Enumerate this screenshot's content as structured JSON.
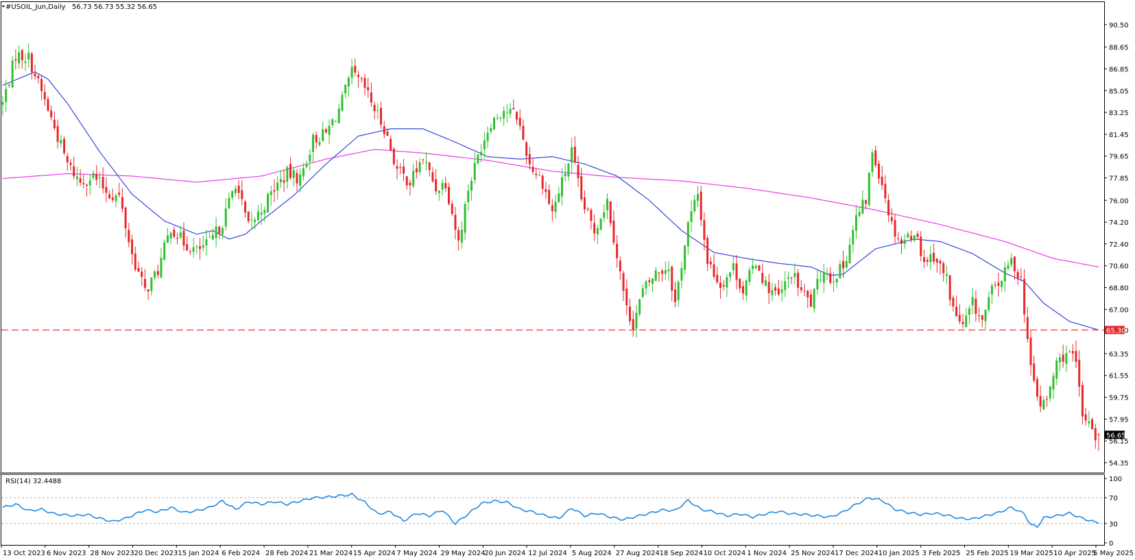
{
  "header": {
    "symbol_label": "#USOIL_Jun,Daily",
    "ohlc_text": "56.73 56.73 55.32 56.65"
  },
  "rsi_header": {
    "label": "RSI(14) 32.4488"
  },
  "colors": {
    "bull": "#2fbf2f",
    "bear": "#e8262a",
    "ma_fast": "#3344dd",
    "ma_slow": "#e83be8",
    "level_line": "#e8484a",
    "rsi_line": "#1e88e5",
    "level_tag_bg": "#e8262a",
    "price_tag_bg": "#000000"
  },
  "chart_data": [
    {
      "type": "candlestick",
      "title": "#USOIL_Jun,Daily",
      "ylim": [
        54.35,
        91.4
      ],
      "y_ticks": [
        90.5,
        88.65,
        86.85,
        85.05,
        83.25,
        81.45,
        79.65,
        77.85,
        76.0,
        74.2,
        72.4,
        70.6,
        68.8,
        67.0,
        65.3,
        63.35,
        61.55,
        59.75,
        57.95,
        56.15,
        54.35
      ],
      "x_ticks": [
        "13 Oct 2023",
        "6 Nov 2023",
        "28 Nov 2023",
        "20 Dec 2023",
        "15 Jan 2024",
        "6 Feb 2024",
        "28 Feb 2024",
        "21 Mar 2024",
        "15 Apr 2024",
        "7 May 2024",
        "29 May 2024",
        "20 Jun 2024",
        "12 Jul 2024",
        "5 Aug 2024",
        "27 Aug 2024",
        "18 Sep 2024",
        "10 Oct 2024",
        "1 Nov 2024",
        "25 Nov 2024",
        "17 Dec 2024",
        "10 Jan 2025",
        "3 Feb 2025",
        "25 Feb 2025",
        "19 Mar 2025",
        "10 Apr 2025",
        "5 May 2025"
      ],
      "last_ohlc": {
        "open": 56.73,
        "high": 56.73,
        "low": 55.32,
        "close": 56.65
      },
      "horizontal_level": 65.3,
      "level_label": "65.30",
      "price_label": "56.65",
      "close_anchors": [
        [
          0,
          84.0
        ],
        [
          4,
          88.0
        ],
        [
          8,
          87.8
        ],
        [
          14,
          83.5
        ],
        [
          20,
          79.0
        ],
        [
          24,
          77.5
        ],
        [
          28,
          78.0
        ],
        [
          33,
          76.5
        ],
        [
          36,
          76.3
        ],
        [
          40,
          71.5
        ],
        [
          44,
          68.5
        ],
        [
          48,
          70.2
        ],
        [
          52,
          73.8
        ],
        [
          56,
          72.5
        ],
        [
          60,
          71.8
        ],
        [
          64,
          72.5
        ],
        [
          68,
          74.2
        ],
        [
          72,
          77.5
        ],
        [
          76,
          73.8
        ],
        [
          80,
          75.2
        ],
        [
          84,
          77.0
        ],
        [
          88,
          78.2
        ],
        [
          92,
          77.8
        ],
        [
          96,
          81.0
        ],
        [
          100,
          81.5
        ],
        [
          104,
          83.5
        ],
        [
          108,
          86.5
        ],
        [
          112,
          85.2
        ],
        [
          116,
          83.0
        ],
        [
          118,
          82.0
        ],
        [
          122,
          78.5
        ],
        [
          126,
          77.5
        ],
        [
          130,
          79.5
        ],
        [
          134,
          77.0
        ],
        [
          137,
          77.5
        ],
        [
          141,
          72.5
        ],
        [
          144,
          77.0
        ],
        [
          148,
          80.5
        ],
        [
          151,
          82.5
        ],
        [
          155,
          83.5
        ],
        [
          159,
          83.0
        ],
        [
          163,
          79.0
        ],
        [
          167,
          77.5
        ],
        [
          170,
          75.0
        ],
        [
          173,
          77.5
        ],
        [
          176,
          80.0
        ],
        [
          179,
          76.0
        ],
        [
          183,
          73.5
        ],
        [
          187,
          76.0
        ],
        [
          190,
          71.5
        ],
        [
          193,
          67.0
        ],
        [
          195,
          65.8
        ],
        [
          198,
          68.5
        ],
        [
          202,
          70.0
        ],
        [
          206,
          70.5
        ],
        [
          208,
          67.5
        ],
        [
          212,
          74.0
        ],
        [
          215,
          76.5
        ],
        [
          218,
          71.0
        ],
        [
          222,
          69.0
        ],
        [
          226,
          70.5
        ],
        [
          229,
          68.5
        ],
        [
          233,
          71.0
        ],
        [
          236,
          69.0
        ],
        [
          240,
          68.0
        ],
        [
          244,
          70.0
        ],
        [
          247,
          68.5
        ],
        [
          250,
          67.5
        ],
        [
          254,
          70.5
        ],
        [
          256,
          69.5
        ],
        [
          260,
          70.5
        ],
        [
          264,
          74.5
        ],
        [
          267,
          76.0
        ],
        [
          269,
          80.0
        ],
        [
          272,
          77.5
        ],
        [
          275,
          74.0
        ],
        [
          278,
          72.5
        ],
        [
          282,
          73.5
        ],
        [
          285,
          71.0
        ],
        [
          288,
          71.5
        ],
        [
          292,
          69.5
        ],
        [
          294,
          67.0
        ],
        [
          297,
          65.5
        ],
        [
          300,
          67.5
        ],
        [
          303,
          66.0
        ],
        [
          306,
          68.5
        ],
        [
          309,
          69.5
        ],
        [
          312,
          71.0
        ],
        [
          315,
          69.5
        ],
        [
          318,
          62.0
        ],
        [
          321,
          59.0
        ],
        [
          323,
          59.5
        ],
        [
          326,
          62.5
        ],
        [
          329,
          63.5
        ],
        [
          332,
          62.5
        ],
        [
          334,
          58.0
        ],
        [
          336,
          58.0
        ],
        [
          338,
          56.65
        ]
      ],
      "ma_fast_anchors": [
        [
          0,
          85.5
        ],
        [
          10,
          86.6
        ],
        [
          14,
          86.0
        ],
        [
          20,
          84.0
        ],
        [
          30,
          80.0
        ],
        [
          40,
          76.5
        ],
        [
          50,
          74.3
        ],
        [
          60,
          73.2
        ],
        [
          65,
          73.5
        ],
        [
          70,
          72.8
        ],
        [
          75,
          73.2
        ],
        [
          80,
          74.3
        ],
        [
          90,
          76.4
        ],
        [
          100,
          79.0
        ],
        [
          110,
          81.3
        ],
        [
          120,
          81.9
        ],
        [
          130,
          81.9
        ],
        [
          140,
          80.8
        ],
        [
          150,
          79.6
        ],
        [
          160,
          79.4
        ],
        [
          170,
          79.6
        ],
        [
          180,
          79.0
        ],
        [
          190,
          78.0
        ],
        [
          200,
          76.0
        ],
        [
          210,
          73.5
        ],
        [
          220,
          71.7
        ],
        [
          230,
          71.2
        ],
        [
          240,
          70.8
        ],
        [
          250,
          70.5
        ],
        [
          256,
          69.8
        ],
        [
          260,
          69.9
        ],
        [
          270,
          72.0
        ],
        [
          282,
          72.8
        ],
        [
          290,
          72.6
        ],
        [
          300,
          71.6
        ],
        [
          310,
          70.0
        ],
        [
          316,
          69.3
        ],
        [
          322,
          67.5
        ],
        [
          330,
          66.0
        ],
        [
          339,
          65.3
        ]
      ],
      "ma_slow_anchors": [
        [
          0,
          77.8
        ],
        [
          20,
          78.2
        ],
        [
          40,
          78.0
        ],
        [
          60,
          77.5
        ],
        [
          80,
          78.0
        ],
        [
          100,
          79.4
        ],
        [
          115,
          80.2
        ],
        [
          130,
          79.9
        ],
        [
          150,
          79.3
        ],
        [
          170,
          78.4
        ],
        [
          190,
          77.9
        ],
        [
          210,
          77.6
        ],
        [
          230,
          77.0
        ],
        [
          250,
          76.2
        ],
        [
          270,
          75.2
        ],
        [
          290,
          74.0
        ],
        [
          310,
          72.6
        ],
        [
          325,
          71.2
        ],
        [
          339,
          70.5
        ]
      ],
      "rsi_anchors": [
        [
          0,
          55
        ],
        [
          4,
          60
        ],
        [
          8,
          50
        ],
        [
          12,
          52
        ],
        [
          16,
          45
        ],
        [
          22,
          42
        ],
        [
          26,
          44
        ],
        [
          30,
          38
        ],
        [
          34,
          33
        ],
        [
          38,
          38
        ],
        [
          44,
          51
        ],
        [
          48,
          48
        ],
        [
          52,
          55
        ],
        [
          56,
          47
        ],
        [
          60,
          50
        ],
        [
          64,
          55
        ],
        [
          68,
          65
        ],
        [
          72,
          52
        ],
        [
          76,
          64
        ],
        [
          80,
          60
        ],
        [
          84,
          64
        ],
        [
          88,
          60
        ],
        [
          92,
          65
        ],
        [
          96,
          70
        ],
        [
          100,
          71
        ],
        [
          104,
          73
        ],
        [
          108,
          75
        ],
        [
          112,
          63
        ],
        [
          116,
          45
        ],
        [
          120,
          48
        ],
        [
          124,
          34
        ],
        [
          128,
          46
        ],
        [
          132,
          42
        ],
        [
          136,
          51
        ],
        [
          140,
          30
        ],
        [
          144,
          45
        ],
        [
          148,
          61
        ],
        [
          152,
          65
        ],
        [
          156,
          63
        ],
        [
          160,
          52
        ],
        [
          164,
          48
        ],
        [
          168,
          42
        ],
        [
          172,
          38
        ],
        [
          176,
          54
        ],
        [
          180,
          42
        ],
        [
          184,
          46
        ],
        [
          188,
          40
        ],
        [
          192,
          36
        ],
        [
          196,
          41
        ],
        [
          200,
          46
        ],
        [
          204,
          51
        ],
        [
          208,
          50
        ],
        [
          212,
          66
        ],
        [
          216,
          52
        ],
        [
          220,
          48
        ],
        [
          224,
          42
        ],
        [
          228,
          45
        ],
        [
          232,
          40
        ],
        [
          236,
          45
        ],
        [
          240,
          49
        ],
        [
          244,
          45
        ],
        [
          248,
          44
        ],
        [
          252,
          42
        ],
        [
          256,
          40
        ],
        [
          260,
          48
        ],
        [
          264,
          60
        ],
        [
          268,
          70
        ],
        [
          272,
          66
        ],
        [
          276,
          52
        ],
        [
          280,
          47
        ],
        [
          284,
          44
        ],
        [
          288,
          46
        ],
        [
          292,
          43
        ],
        [
          296,
          38
        ],
        [
          300,
          37
        ],
        [
          304,
          42
        ],
        [
          308,
          47
        ],
        [
          312,
          55
        ],
        [
          316,
          45
        ],
        [
          318,
          28
        ],
        [
          320,
          25
        ],
        [
          322,
          39
        ],
        [
          326,
          42
        ],
        [
          330,
          46
        ],
        [
          334,
          38
        ],
        [
          338,
          32
        ]
      ]
    },
    {
      "type": "line",
      "title": "RSI(14) 32.4488",
      "ylim": [
        0,
        100
      ],
      "y_ticks": [
        100,
        70,
        30,
        0
      ],
      "levels": [
        70,
        30
      ]
    }
  ]
}
